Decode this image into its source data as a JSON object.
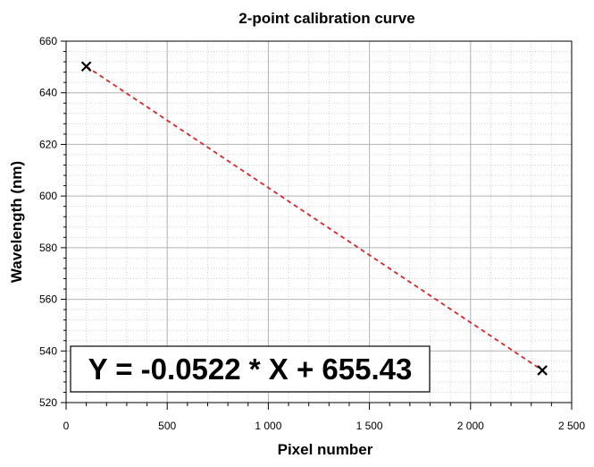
{
  "chart_data": {
    "type": "scatter",
    "title": "2-point calibration curve",
    "xlabel": "Pixel number",
    "ylabel": "Wavelength (nm)",
    "xlim": [
      0,
      2500
    ],
    "ylim": [
      520,
      660
    ],
    "x_ticks": [
      0,
      500,
      1000,
      1500,
      2000,
      2500
    ],
    "x_tick_labels": [
      "0",
      "500",
      "1 000",
      "1 500",
      "2 000",
      "2 500"
    ],
    "y_ticks": [
      520,
      540,
      560,
      580,
      600,
      620,
      640,
      660
    ],
    "y_tick_labels": [
      "520",
      "540",
      "560",
      "580",
      "600",
      "620",
      "640",
      "660"
    ],
    "grid": true,
    "points": [
      {
        "x": 100,
        "y": 650.2
      },
      {
        "x": 2355,
        "y": 532.5
      }
    ],
    "fit_line": {
      "x": [
        100,
        2355
      ],
      "y": [
        650.2,
        532.5
      ],
      "style": "dashed",
      "color": "#d62728"
    },
    "annotation": "Y = -0.0522 * X + 655.43",
    "marker_color": "#000000",
    "grid_major_color": "#b4b4b4",
    "grid_minor_color": "#d2d2d2"
  }
}
